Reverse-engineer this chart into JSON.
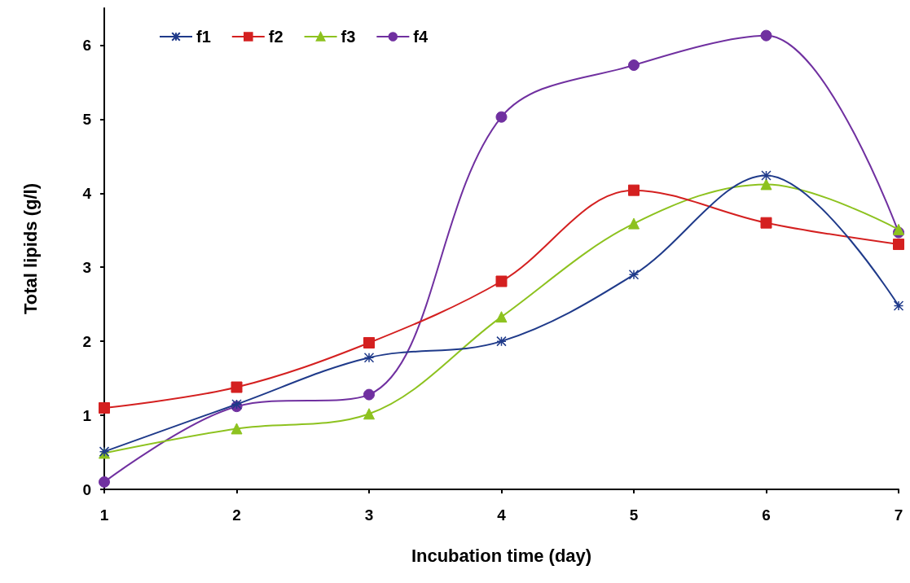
{
  "chart_data": {
    "type": "line",
    "xlabel": "Incubation time (day)",
    "ylabel": "Total lipids (g/l)",
    "x": [
      1,
      2,
      3,
      4,
      5,
      6,
      7
    ],
    "xlim": [
      1,
      7
    ],
    "xticks": [
      1,
      2,
      3,
      4,
      5,
      6,
      7
    ],
    "ylim": [
      0,
      6.5
    ],
    "yticks": [
      0,
      1,
      2,
      3,
      4,
      5,
      6
    ],
    "grid": false,
    "legend": "top left",
    "series": [
      {
        "name": "f1",
        "color": "#1f3a8a",
        "marker": "cross",
        "values": [
          0.51,
          1.15,
          1.78,
          2.0,
          2.9,
          4.24,
          2.48
        ]
      },
      {
        "name": "f2",
        "color": "#d42020",
        "marker": "square",
        "values": [
          1.1,
          1.38,
          1.98,
          2.81,
          4.04,
          3.6,
          3.31
        ]
      },
      {
        "name": "f3",
        "color": "#8dc21f",
        "marker": "triangle",
        "values": [
          0.49,
          0.82,
          1.02,
          2.33,
          3.59,
          4.12,
          3.51
        ]
      },
      {
        "name": "f4",
        "color": "#7030a0",
        "marker": "circle",
        "values": [
          0.1,
          1.12,
          1.28,
          5.03,
          5.73,
          6.13,
          3.47
        ]
      }
    ]
  }
}
